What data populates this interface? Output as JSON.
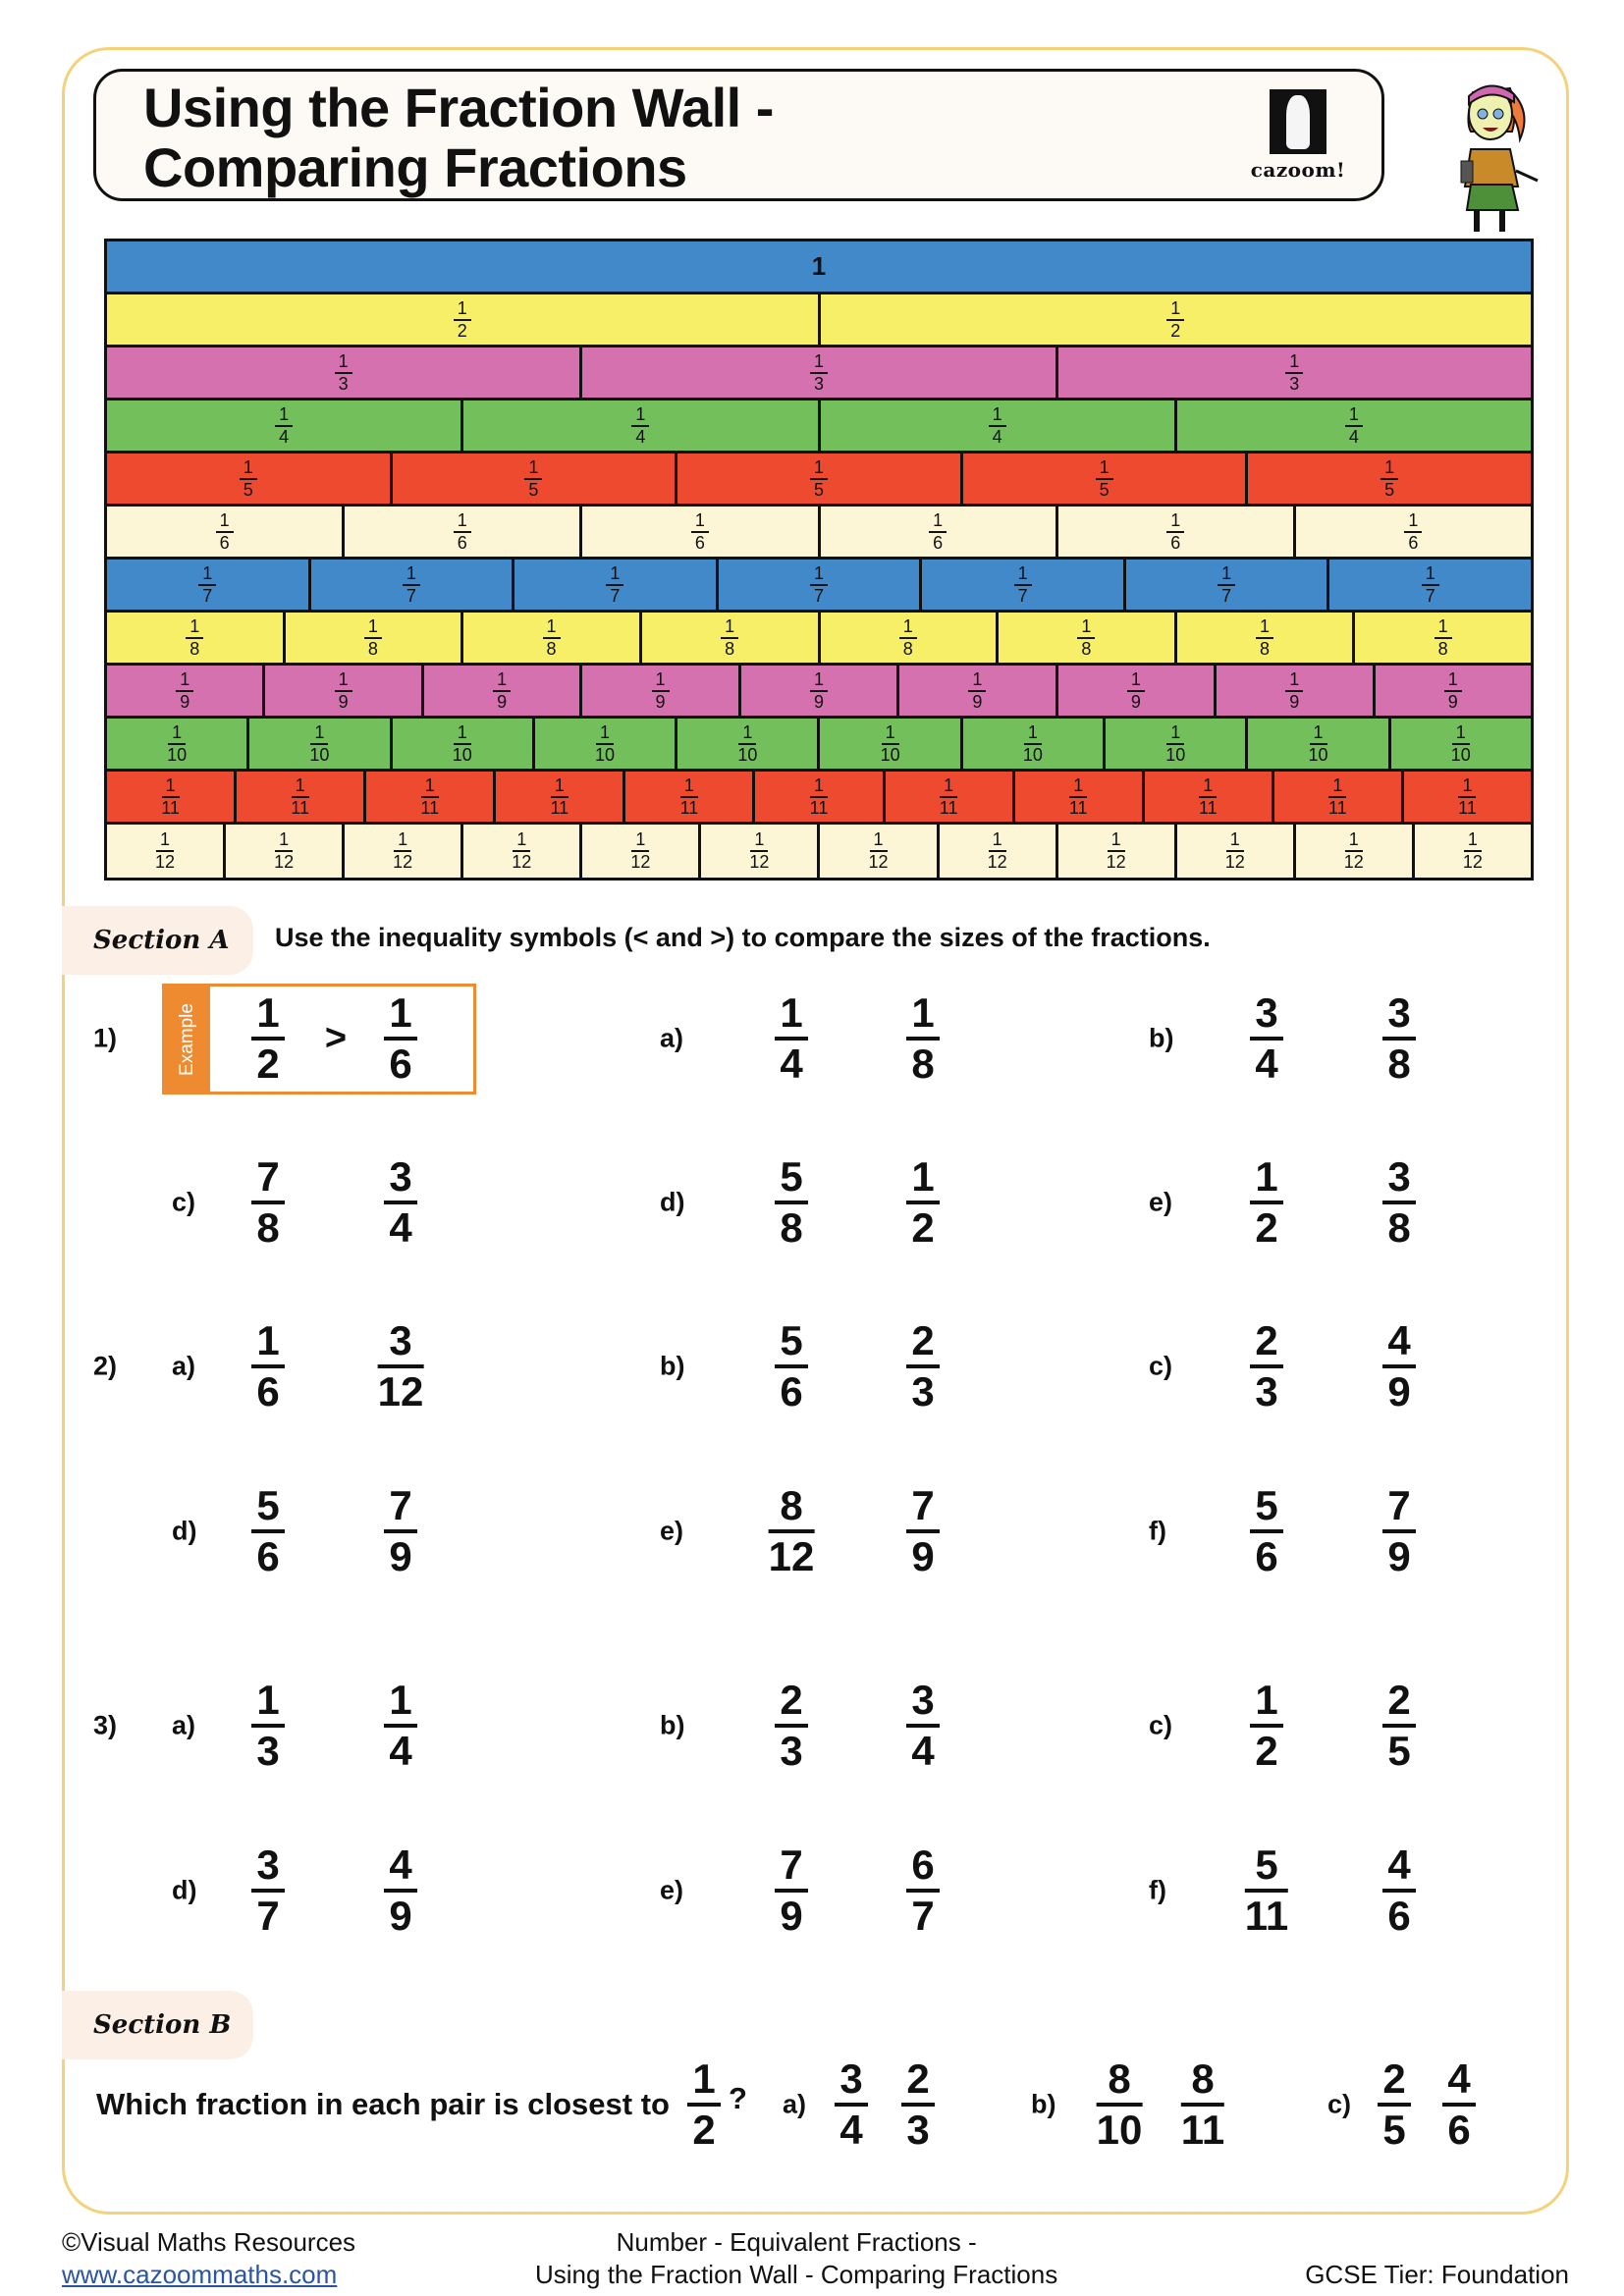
{
  "header": {
    "title_line1": "Using the Fraction Wall -",
    "title_line2": "Comparing Fractions",
    "logo_text": "cazoom!"
  },
  "fraction_wall": {
    "whole_label": "1",
    "rows": [
      {
        "denominator": "1",
        "count": 1,
        "color": "#4189c9"
      },
      {
        "denominator": "2",
        "count": 2,
        "color": "#f7ef68"
      },
      {
        "denominator": "3",
        "count": 3,
        "color": "#d471ae"
      },
      {
        "denominator": "4",
        "count": 4,
        "color": "#72bf5b"
      },
      {
        "denominator": "5",
        "count": 5,
        "color": "#ee4a2f"
      },
      {
        "denominator": "6",
        "count": 6,
        "color": "#fdf6d6"
      },
      {
        "denominator": "7",
        "count": 7,
        "color": "#4189c9"
      },
      {
        "denominator": "8",
        "count": 8,
        "color": "#f7ef68"
      },
      {
        "denominator": "9",
        "count": 9,
        "color": "#d471ae"
      },
      {
        "denominator": "10",
        "count": 10,
        "color": "#72bf5b"
      },
      {
        "denominator": "11",
        "count": 11,
        "color": "#ee4a2f"
      },
      {
        "denominator": "12",
        "count": 12,
        "color": "#fdf6d6"
      }
    ]
  },
  "section_a": {
    "label": "Section A",
    "instruction": "Use the inequality symbols (< and >) to compare the sizes of the fractions.",
    "example": {
      "tag": "Example",
      "left": {
        "num": "1",
        "den": "2"
      },
      "symbol": ">",
      "right": {
        "num": "1",
        "den": "6"
      }
    },
    "questions": [
      {
        "number": "1)",
        "items": [
          {
            "letter": "a)",
            "left": {
              "num": "1",
              "den": "4"
            },
            "right": {
              "num": "1",
              "den": "8"
            }
          },
          {
            "letter": "b)",
            "left": {
              "num": "3",
              "den": "4"
            },
            "right": {
              "num": "3",
              "den": "8"
            }
          },
          {
            "letter": "c)",
            "left": {
              "num": "7",
              "den": "8"
            },
            "right": {
              "num": "3",
              "den": "4"
            }
          },
          {
            "letter": "d)",
            "left": {
              "num": "5",
              "den": "8"
            },
            "right": {
              "num": "1",
              "den": "2"
            }
          },
          {
            "letter": "e)",
            "left": {
              "num": "1",
              "den": "2"
            },
            "right": {
              "num": "3",
              "den": "8"
            }
          }
        ]
      },
      {
        "number": "2)",
        "items": [
          {
            "letter": "a)",
            "left": {
              "num": "1",
              "den": "6"
            },
            "right": {
              "num": "3",
              "den": "12"
            }
          },
          {
            "letter": "b)",
            "left": {
              "num": "5",
              "den": "6"
            },
            "right": {
              "num": "2",
              "den": "3"
            }
          },
          {
            "letter": "c)",
            "left": {
              "num": "2",
              "den": "3"
            },
            "right": {
              "num": "4",
              "den": "9"
            }
          },
          {
            "letter": "d)",
            "left": {
              "num": "5",
              "den": "6"
            },
            "right": {
              "num": "7",
              "den": "9"
            }
          },
          {
            "letter": "e)",
            "left": {
              "num": "8",
              "den": "12"
            },
            "right": {
              "num": "7",
              "den": "9"
            }
          },
          {
            "letter": "f)",
            "left": {
              "num": "5",
              "den": "6"
            },
            "right": {
              "num": "7",
              "den": "9"
            }
          }
        ]
      },
      {
        "number": "3)",
        "items": [
          {
            "letter": "a)",
            "left": {
              "num": "1",
              "den": "3"
            },
            "right": {
              "num": "1",
              "den": "4"
            }
          },
          {
            "letter": "b)",
            "left": {
              "num": "2",
              "den": "3"
            },
            "right": {
              "num": "3",
              "den": "4"
            }
          },
          {
            "letter": "c)",
            "left": {
              "num": "1",
              "den": "2"
            },
            "right": {
              "num": "2",
              "den": "5"
            }
          },
          {
            "letter": "d)",
            "left": {
              "num": "3",
              "den": "7"
            },
            "right": {
              "num": "4",
              "den": "9"
            }
          },
          {
            "letter": "e)",
            "left": {
              "num": "7",
              "den": "9"
            },
            "right": {
              "num": "6",
              "den": "7"
            }
          },
          {
            "letter": "f)",
            "left": {
              "num": "5",
              "den": "11"
            },
            "right": {
              "num": "4",
              "den": "6"
            }
          }
        ]
      }
    ]
  },
  "section_b": {
    "label": "Section B",
    "question": "Which fraction in each pair is closest to",
    "target": {
      "num": "1",
      "den": "2"
    },
    "question_mark": "?",
    "items": [
      {
        "letter": "a)",
        "left": {
          "num": "3",
          "den": "4"
        },
        "right": {
          "num": "2",
          "den": "3"
        }
      },
      {
        "letter": "b)",
        "left": {
          "num": "8",
          "den": "10"
        },
        "right": {
          "num": "8",
          "den": "11"
        }
      },
      {
        "letter": "c)",
        "left": {
          "num": "2",
          "den": "5"
        },
        "right": {
          "num": "4",
          "den": "6"
        }
      }
    ]
  },
  "footer": {
    "copyright": "©Visual Maths Resources",
    "website": "www.cazoommaths.com",
    "topic_line1": "Number - Equivalent Fractions -",
    "topic_line2": "Using the Fraction Wall - Comparing Fractions",
    "tier": "GCSE Tier: Foundation"
  }
}
